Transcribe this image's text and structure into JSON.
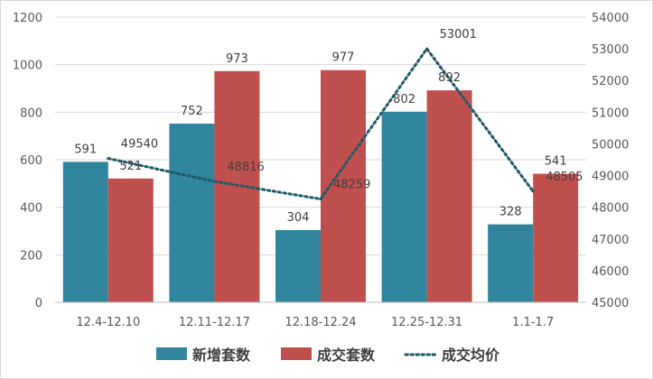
{
  "chart_data": {
    "type": "bar",
    "categories": [
      "12.4-12.10",
      "12.11-12.17",
      "12.18-12.24",
      "12.25-12.31",
      "1.1-1.7"
    ],
    "series": [
      {
        "name": "新增套数",
        "kind": "bar",
        "axis": "left",
        "color": "#31859c",
        "values": [
          591,
          752,
          304,
          802,
          328
        ]
      },
      {
        "name": "成交套数",
        "kind": "bar",
        "axis": "left",
        "color": "#c0504d",
        "values": [
          521,
          973,
          977,
          892,
          541
        ]
      },
      {
        "name": "成交均价",
        "kind": "line",
        "axis": "right",
        "color": "#215968",
        "style": "dotted",
        "values": [
          49540,
          48816,
          48259,
          53001,
          48505
        ]
      }
    ],
    "y_left": {
      "min": 0,
      "max": 1200,
      "ticks": [
        0,
        200,
        400,
        600,
        800,
        1000,
        1200
      ]
    },
    "y_right": {
      "min": 45000,
      "max": 54000,
      "ticks": [
        45000,
        46000,
        47000,
        48000,
        49000,
        50000,
        51000,
        52000,
        53000,
        54000
      ]
    },
    "grid": true,
    "legend_position": "bottom"
  }
}
